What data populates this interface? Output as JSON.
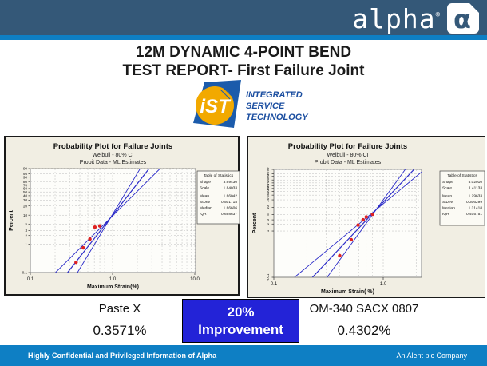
{
  "header": {
    "brand": "alpha",
    "registered": "®"
  },
  "title": {
    "line1": "12M DYNAMIC 4-POINT BEND",
    "line2": "TEST REPORT- First Failure Joint"
  },
  "ist_logo": {
    "mark_text": "iST",
    "lines": [
      "INTEGRATED",
      "SERVICE",
      "TECHNOLOGY"
    ]
  },
  "results": {
    "left_label": "Paste X",
    "left_value": "0.3571%",
    "badge_line1": "20%",
    "badge_line2": "Improvement",
    "right_label": "OM-340 SACX 0807",
    "right_value": "0.4302%"
  },
  "footer": {
    "left": "Highly Confidential and Privileged Information of Alpha",
    "right": "An Alent plc Company"
  },
  "colors": {
    "bar": "#345878",
    "accent": "#0e7fc4",
    "badge": "#2323d7",
    "chart_bg": "#f1eee3",
    "plot_bg": "#fdfdfa",
    "grid": "#bcbcbc",
    "fit_line": "#2929c8",
    "point": "#dd2222",
    "ist_blue": "#1b5bab",
    "ist_yellow": "#f2a900",
    "ist_text": "#1b4ea0"
  },
  "chart_data": [
    {
      "type": "scatter",
      "title": "Probability Plot for Failure Joints",
      "subtitle1": "Weibull - 80% CI",
      "subtitle2": "Probit Data - ML Estimates",
      "xlabel": "Maximum Strain(%)",
      "ylabel": "Percent",
      "xscale": "log10",
      "yscale": "weibull-probability",
      "xlim": [
        0.1,
        10.5
      ],
      "ylim": [
        0.1,
        99
      ],
      "xticks": [
        "0.1",
        "1.0",
        "10.0"
      ],
      "yticks": [
        "0.1",
        "1",
        "2",
        "3",
        "5",
        "10",
        "20",
        "30",
        "40",
        "50",
        "60",
        "70",
        "80",
        "90",
        "95",
        "99"
      ],
      "grid": true,
      "points": [
        [
          0.36,
          0.23
        ],
        [
          0.44,
          0.74
        ],
        [
          0.53,
          1.5
        ],
        [
          0.61,
          3.9
        ],
        [
          0.7,
          4.3
        ]
      ],
      "fit": {
        "distribution": "Weibull",
        "shape": 3.6943,
        "scale": 1.84033,
        "ci": "80%"
      },
      "stats": {
        "title": "Table of Statistics",
        "rows": [
          [
            "Shape",
            "3.69430"
          ],
          [
            "Scale",
            "1.84033"
          ],
          [
            "Mean",
            "1.66042"
          ],
          [
            "StDev",
            "0.501718"
          ],
          [
            "Median",
            "1.66606"
          ],
          [
            "IQR",
            "0.698637"
          ]
        ]
      }
    },
    {
      "type": "scatter",
      "title": "Probability Plot for Failure Joints",
      "subtitle1": "Weibull - 80% CI",
      "subtitle2": "Probit Data - ML Estimates",
      "xlabel": "Maximum Strain( %)",
      "ylabel": "Percent",
      "xscale": "log10",
      "yscale": "weibull-probability",
      "xlim": [
        0.1,
        2.3
      ],
      "ylim": [
        0.01,
        99
      ],
      "xticks": [
        "0.1",
        "1.0"
      ],
      "yticks": [
        "0.01",
        "1",
        "2",
        "3",
        "5",
        "10",
        "20",
        "30",
        "40",
        "50",
        "60",
        "70",
        "80",
        "90",
        "95",
        "99"
      ],
      "grid": true,
      "ytick_rotated": true,
      "points": [
        [
          0.4,
          0.086
        ],
        [
          0.51,
          0.42
        ],
        [
          0.59,
          1.8
        ],
        [
          0.655,
          3.0
        ],
        [
          0.7,
          4.0
        ],
        [
          0.8,
          5.2
        ]
      ],
      "fit": {
        "distribution": "Weibull",
        "shape": 5.0201,
        "scale": 1.41133,
        "ci": "80%"
      },
      "stats": {
        "title": "Table of Statistics",
        "rows": [
          [
            "Shape",
            "5.02010"
          ],
          [
            "Scale",
            "1.41133"
          ],
          [
            "Mean",
            "1.29633"
          ],
          [
            "StDev",
            "0.306299"
          ],
          [
            "Median",
            "1.31418"
          ],
          [
            "IQR",
            "0.405751"
          ]
        ]
      }
    }
  ]
}
